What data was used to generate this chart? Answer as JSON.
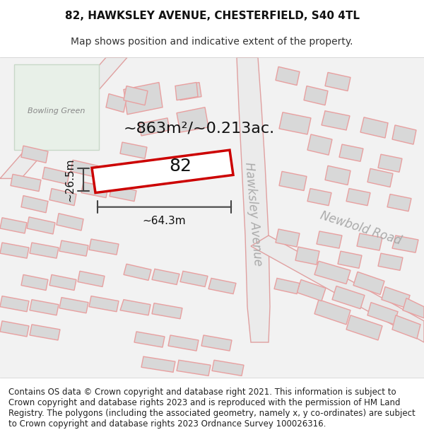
{
  "title_line1": "82, HAWKSLEY AVENUE, CHESTERFIELD, S40 4TL",
  "title_line2": "Map shows position and indicative extent of the property.",
  "footer_text": "Contains OS data © Crown copyright and database right 2021. This information is subject to Crown copyright and database rights 2023 and is reproduced with the permission of HM Land Registry. The polygons (including the associated geometry, namely x, y co-ordinates) are subject to Crown copyright and database rights 2023 Ordnance Survey 100026316.",
  "area_label": "~863m²/~0.213ac.",
  "width_label": "~64.3m",
  "height_label": "~26.5m",
  "plot_number": "82",
  "road_label1": "Newbold Road",
  "road_label2": "Hawksley Avenue",
  "area_label3": "Bowling Green",
  "bg_color": "#ffffff",
  "map_bg": "#f5f5f5",
  "road_fill": "#e8e8e8",
  "building_fill": "#d8d8d8",
  "road_stroke": "#e8a8a8",
  "plot_stroke": "#cc0000",
  "plot_fill": "#ffffff",
  "bowling_green_fill": "#e8f0e8",
  "dim_line_color": "#444444",
  "text_color": "#333333",
  "road_text_color": "#aaaaaa",
  "title_fontsize": 11,
  "subtitle_fontsize": 10,
  "footer_fontsize": 8.5,
  "label_fontsize": 13,
  "area_fontsize": 16,
  "road_label_fontsize": 12
}
